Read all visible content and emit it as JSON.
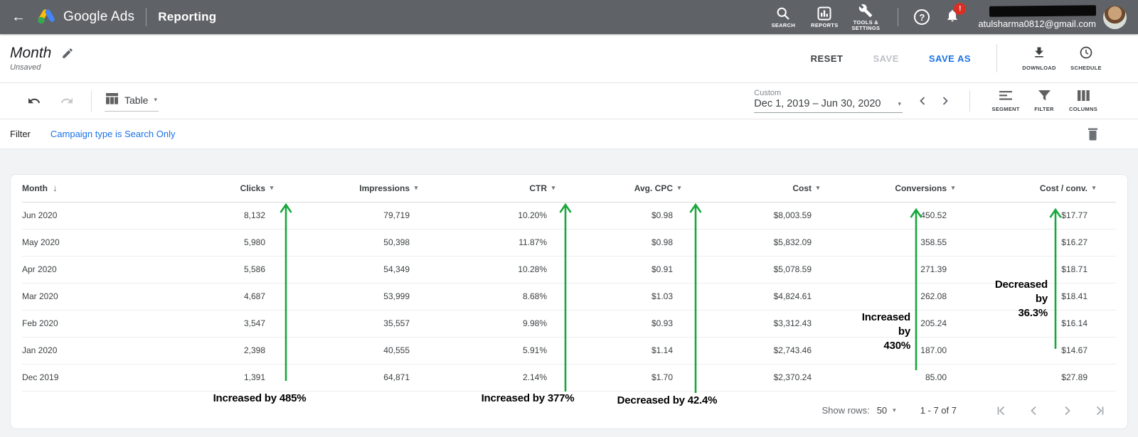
{
  "topbar": {
    "brand": "Google Ads",
    "section": "Reporting",
    "nav": {
      "search": "SEARCH",
      "reports": "REPORTS",
      "tools": "TOOLS &\nSETTINGS"
    },
    "help": "?",
    "notification_badge": "!",
    "account_email": "atulsharma0812@gmail.com"
  },
  "report_header": {
    "title": "Month",
    "status": "Unsaved",
    "reset": "RESET",
    "save": "SAVE",
    "save_as": "SAVE AS",
    "download": "DOWNLOAD",
    "schedule": "SCHEDULE"
  },
  "toolbar": {
    "view": "Table",
    "date_label": "Custom",
    "date_range": "Dec 1, 2019 – Jun 30, 2020",
    "segment": "SEGMENT",
    "filter": "FILTER",
    "columns": "COLUMNS"
  },
  "filter_bar": {
    "label": "Filter",
    "value": "Campaign type is Search Only"
  },
  "table": {
    "columns": [
      "Month",
      "Clicks",
      "Impressions",
      "CTR",
      "Avg. CPC",
      "Cost",
      "Conversions",
      "Cost / conv."
    ],
    "rows": [
      [
        "Jun 2020",
        "8,132",
        "79,719",
        "10.20%",
        "$0.98",
        "$8,003.59",
        "450.52",
        "$17.77"
      ],
      [
        "May 2020",
        "5,980",
        "50,398",
        "11.87%",
        "$0.98",
        "$5,832.09",
        "358.55",
        "$16.27"
      ],
      [
        "Apr 2020",
        "5,586",
        "54,349",
        "10.28%",
        "$0.91",
        "$5,078.59",
        "271.39",
        "$18.71"
      ],
      [
        "Mar 2020",
        "4,687",
        "53,999",
        "8.68%",
        "$1.03",
        "$4,824.61",
        "262.08",
        "$18.41"
      ],
      [
        "Feb 2020",
        "3,547",
        "35,557",
        "9.98%",
        "$0.93",
        "$3,312.43",
        "205.24",
        "$16.14"
      ],
      [
        "Jan 2020",
        "2,398",
        "40,555",
        "5.91%",
        "$1.14",
        "$2,743.46",
        "187.00",
        "$14.67"
      ],
      [
        "Dec 2019",
        "1,391",
        "64,871",
        "2.14%",
        "$1.70",
        "$2,370.24",
        "85.00",
        "$27.89"
      ]
    ]
  },
  "annotations": {
    "arrow_color": "#18a73d",
    "clicks": "Increased by 485%",
    "ctr": "Increased by 377%",
    "avg_cpc": "Decreased by 42.4%",
    "conversions": {
      "l1": "Increased",
      "l2": "by",
      "l3": "430%"
    },
    "cost_conv": {
      "l1": "Decreased",
      "l2": "by",
      "l3": "36.3%"
    }
  },
  "pagination": {
    "show_rows_label": "Show rows:",
    "page_size": "50",
    "range": "1 - 7 of 7"
  }
}
